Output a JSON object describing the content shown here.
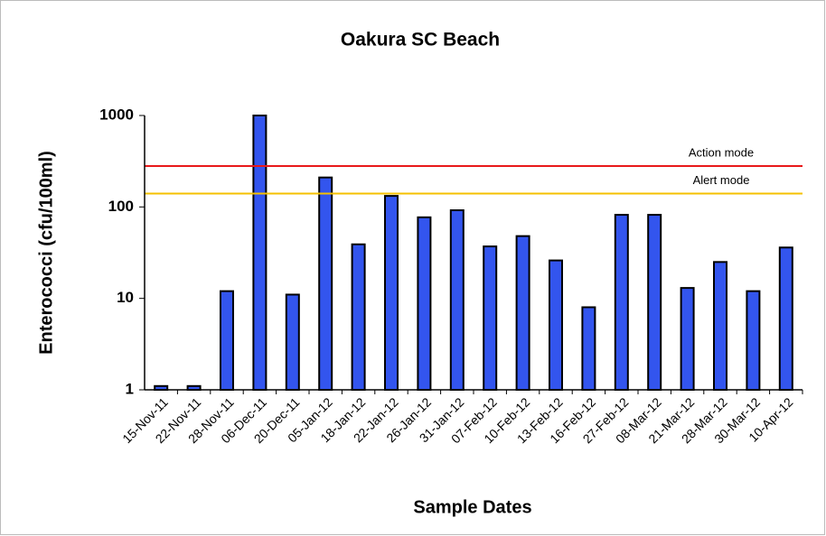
{
  "chart_data": {
    "type": "bar",
    "title": "Oakura SC Beach",
    "x_label": "Sample Dates",
    "y_label": "Enterococci (cfu/100ml)",
    "categories": [
      "15-Nov-11",
      "22-Nov-11",
      "28-Nov-11",
      "06-Dec-11",
      "20-Dec-11",
      "05-Jan-12",
      "18-Jan-12",
      "22-Jan-12",
      "26-Jan-12",
      "31-Jan-12",
      "07-Feb-12",
      "10-Feb-12",
      "13-Feb-12",
      "16-Feb-12",
      "27-Feb-12",
      "08-Mar-12",
      "21-Mar-12",
      "28-Mar-12",
      "30-Mar-12",
      "10-Apr-12"
    ],
    "values": [
      1.1,
      1.1,
      12,
      1000,
      11,
      210,
      39,
      132,
      77,
      92,
      37,
      48,
      26,
      8,
      82,
      82,
      13,
      25,
      12,
      36
    ],
    "color": "#3355ee",
    "ylim": [
      1,
      1000
    ],
    "yticks": [
      1,
      10,
      100,
      1000
    ],
    "log_scale": true,
    "reference_lines": [
      {
        "label": "Action mode",
        "value": 280,
        "color": "#e8191a"
      },
      {
        "label": "Alert mode",
        "value": 140,
        "color": "#f5c000"
      }
    ]
  }
}
